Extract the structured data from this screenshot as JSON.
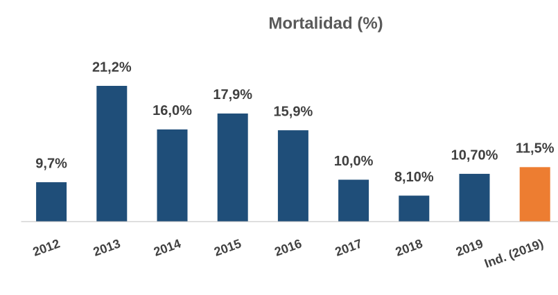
{
  "chart_data": {
    "type": "bar",
    "title": "Mortalidad (%)",
    "categories": [
      "2012",
      "2013",
      "2014",
      "2015",
      "2016",
      "2017",
      "2018",
      "2019",
      "Ind. (2019)"
    ],
    "values": [
      9.7,
      21.2,
      16.0,
      17.9,
      15.9,
      10.0,
      8.1,
      10.7,
      11.5
    ],
    "value_labels": [
      "9,7%",
      "21,2%",
      "16,0%",
      "17,9%",
      "15,9%",
      "10,0%",
      "8,10%",
      "10,70%",
      "11,5%"
    ],
    "colors": [
      "#1f4e79",
      "#1f4e79",
      "#1f4e79",
      "#1f4e79",
      "#1f4e79",
      "#1f4e79",
      "#1f4e79",
      "#1f4e79",
      "#ed7d31"
    ],
    "ylim": [
      5,
      25
    ]
  }
}
